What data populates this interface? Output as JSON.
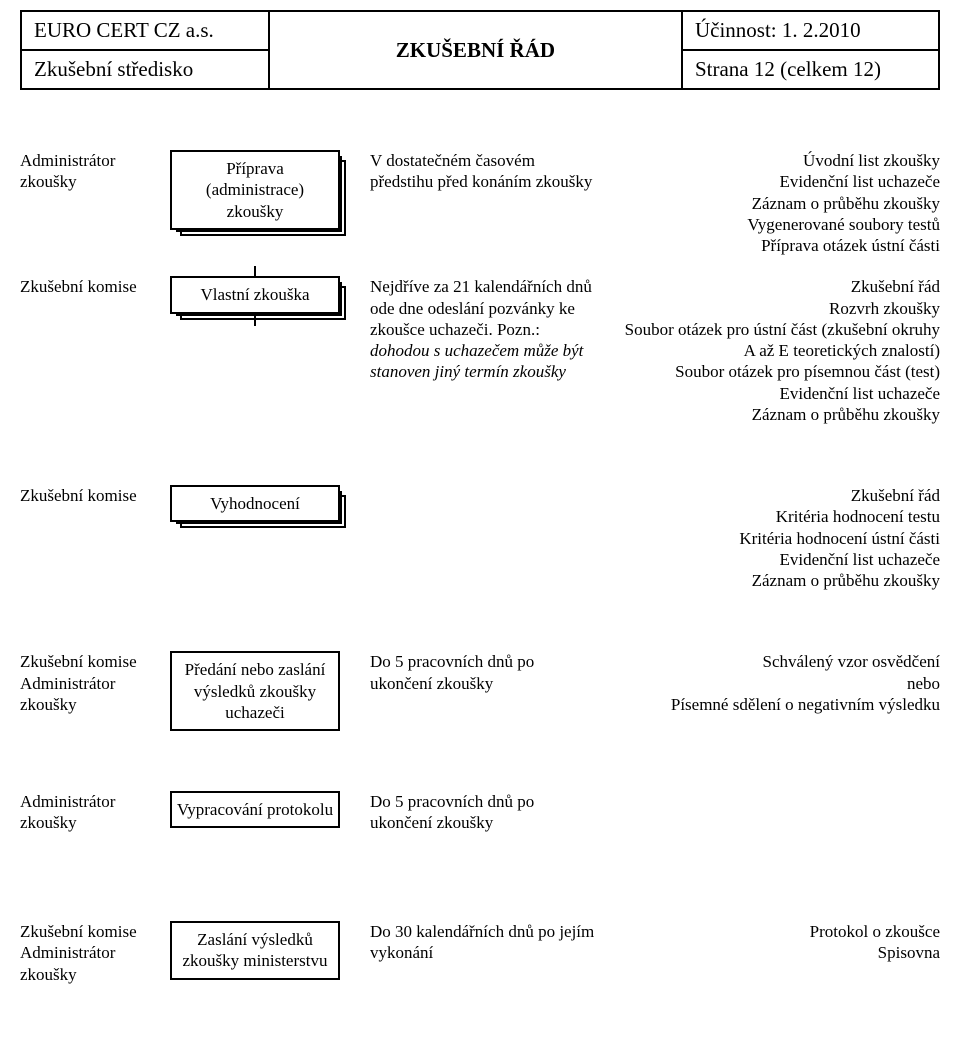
{
  "header": {
    "org": "EURO CERT CZ a.s.",
    "title": "ZKUŠEBNÍ ŘÁD",
    "effective": "Účinnost: 1. 2.2010",
    "subunit": "Zkušební středisko",
    "page": "Strana 12 (celkem 12)"
  },
  "styles": {
    "background": "#ffffff",
    "text_color": "#000000",
    "border_color": "#000000",
    "font_family": "Times New Roman",
    "header_fontsize_pt": 16,
    "body_fontsize_pt": 13,
    "shadow_layers": 2
  },
  "flow": [
    {
      "role": "Administrátor zkoušky",
      "step": "Příprava (administrace) zkoušky",
      "step_shadow": true,
      "desc": "V dostatečném časovém předstihu před konáním zkoušky",
      "outputs": [
        "Úvodní list zkoušky",
        "Evidenční list uchazeče",
        "Záznam o průběhu zkoušky",
        "Vygenerované soubory testů",
        "Příprava otázek ústní části"
      ],
      "connector_after": true
    },
    {
      "role": "Zkušební komise",
      "step": "Vlastní zkouška",
      "step_shadow": true,
      "desc_html": "Nejdříve za 21 kalendářních dnů ode dne odeslání pozvánky ke zkoušce uchazeči. Pozn.: <span class=\"italic\">dohodou s uchazečem může být stanoven jiný termín zkoušky</span>",
      "outputs": [
        "Zkušební řád",
        "Rozvrh zkoušky",
        "Soubor otázek pro ústní část (zkušební okruhy A až E teoretických znalostí)",
        "Soubor otázek pro písemnou část (test)",
        "Evidenční list uchazeče",
        "Záznam o průběhu zkoušky"
      ],
      "connector_after": false
    },
    {
      "role": "Zkušební komise",
      "step": "Vyhodnocení",
      "step_shadow": true,
      "desc": "",
      "outputs": [
        "Zkušební řád",
        "Kritéria hodnocení testu",
        "Kritéria hodnocení ústní části",
        "Evidenční list uchazeče",
        "Záznam o průběhu zkoušky"
      ],
      "connector_after": false
    },
    {
      "role": "Zkušební komise\nAdministrátor zkoušky",
      "step": "Předání nebo zaslání výsledků zkoušky uchazeči",
      "step_shadow": false,
      "desc": "Do 5 pracovních dnů po ukončení zkoušky",
      "outputs": [
        "Schválený vzor osvědčení",
        "nebo",
        "Písemné sdělení o negativním výsledku"
      ],
      "connector_after": false
    },
    {
      "role": "Administrátor zkoušky",
      "step": "Vypracování protokolu",
      "step_shadow": false,
      "desc": "Do 5 pracovních dnů po ukončení zkoušky",
      "outputs": [],
      "connector_after": false
    },
    {
      "role": "Zkušební komise\nAdministrátor zkoušky",
      "step": "Zaslání výsledků zkoušky ministerstvu",
      "step_shadow": false,
      "desc": "Do 30 kalendářních dnů po jejím vykonání",
      "outputs": [
        "Protokol o zkoušce",
        "Spisovna"
      ],
      "connector_after": false
    }
  ]
}
